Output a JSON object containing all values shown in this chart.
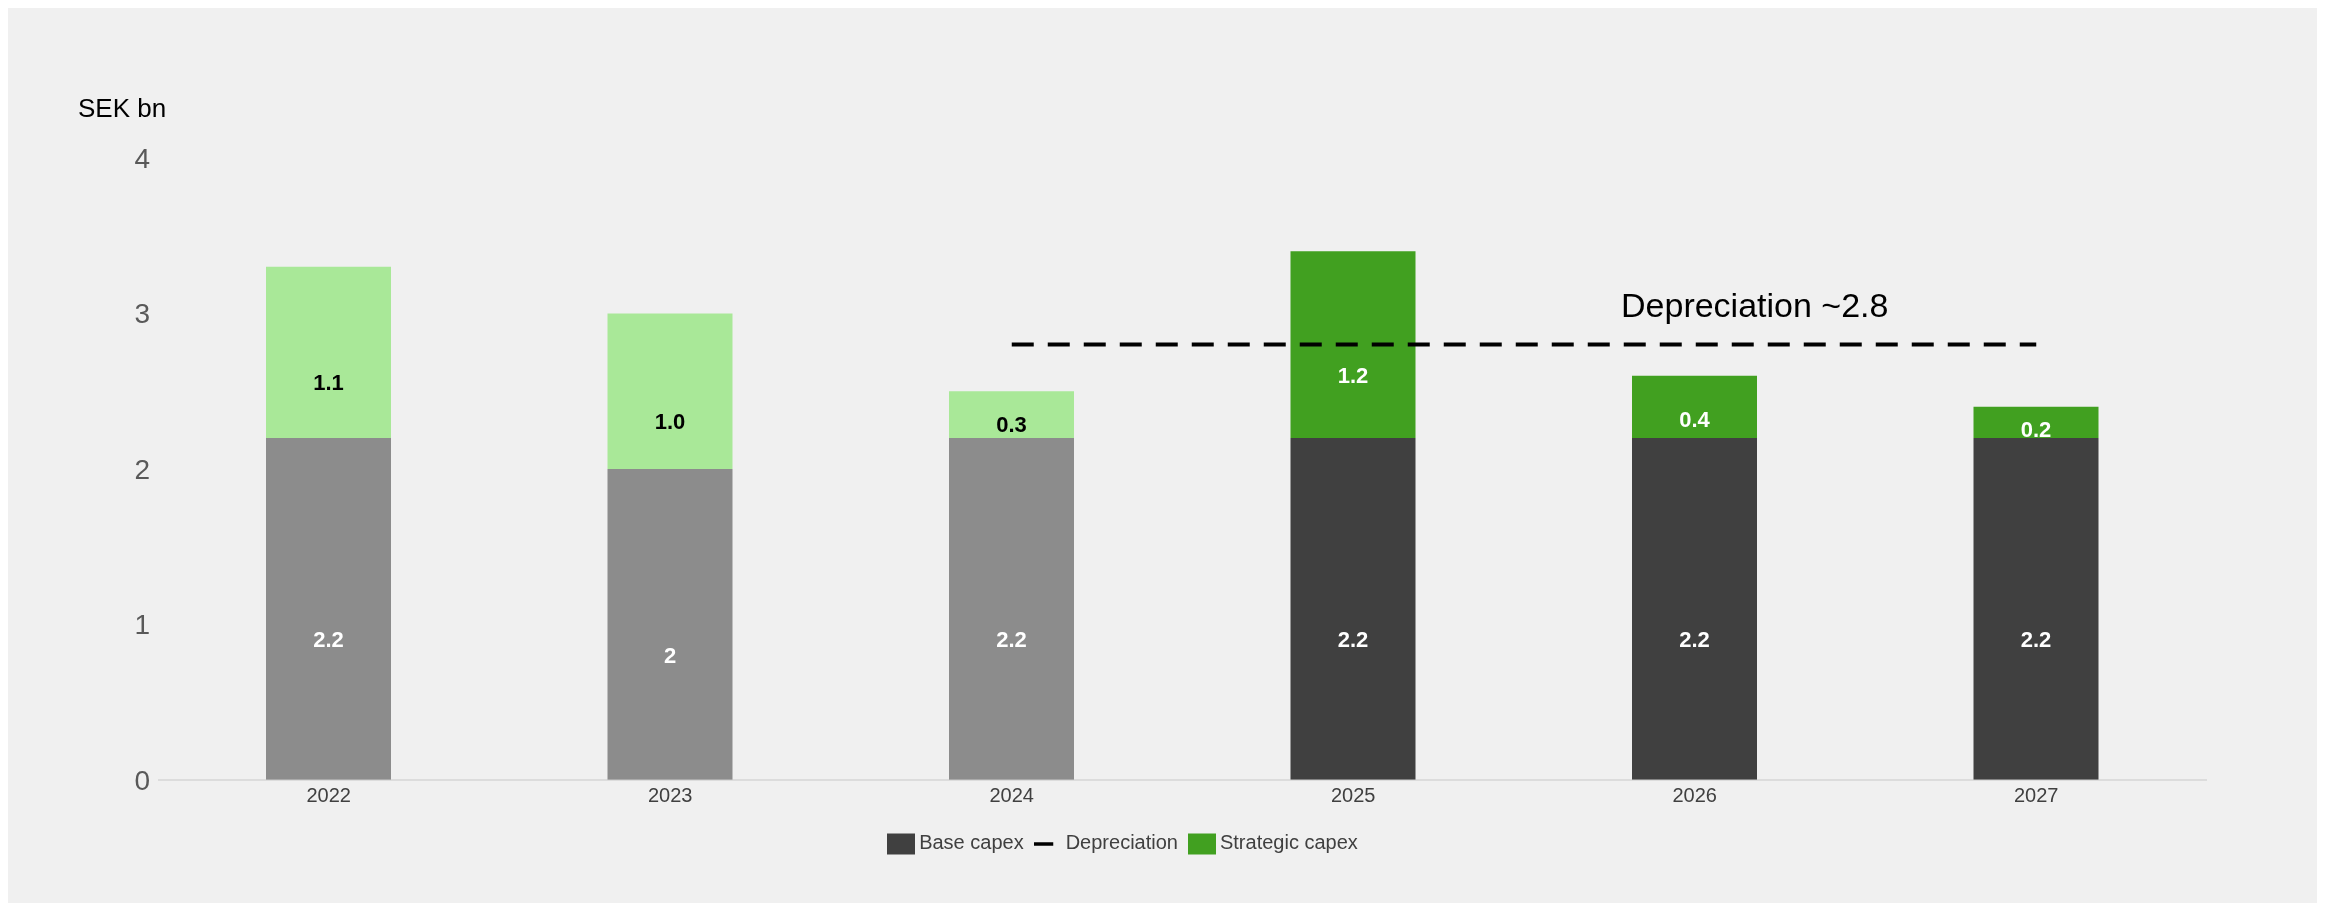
{
  "chart_data": {
    "type": "bar",
    "stacked": true,
    "ylabel": "SEK bn",
    "categories": [
      "2022",
      "2023",
      "2024",
      "2025",
      "2026",
      "2027"
    ],
    "series": [
      {
        "name": "Base capex",
        "color": "#404040",
        "colors": [
          "#8c8c8c",
          "#8c8c8c",
          "#8c8c8c",
          "#404040",
          "#404040",
          "#404040"
        ],
        "values": [
          2.2,
          2,
          2.2,
          2.2,
          2.2,
          2.2
        ],
        "value_labels": [
          "2.2",
          "2",
          "2.2",
          "2.2",
          "2.2",
          "2.2"
        ]
      },
      {
        "name": "Strategic capex",
        "color": "#41a020",
        "colors": [
          "#a9e898",
          "#a9e898",
          "#a9e898",
          "#41a020",
          "#41a020",
          "#41a020"
        ],
        "values": [
          1.1,
          1.0,
          0.3,
          1.2,
          0.4,
          0.2
        ],
        "value_labels": [
          "1.1",
          "1.0",
          "0.3",
          "1.2",
          "0.4",
          "0.2"
        ]
      },
      {
        "name": "Depreciation",
        "type": "line",
        "color": "#000000",
        "line_style": "dashed",
        "values": [
          null,
          null,
          2.8,
          2.8,
          2.8,
          2.8
        ]
      }
    ],
    "annotations": [
      {
        "text": "Depreciation ~2.8",
        "x": "2026",
        "y": 2.8
      }
    ],
    "ylim": [
      0,
      4
    ],
    "yticks": [
      0,
      1,
      2,
      3,
      4
    ],
    "grid": false,
    "legend": "bottom"
  }
}
